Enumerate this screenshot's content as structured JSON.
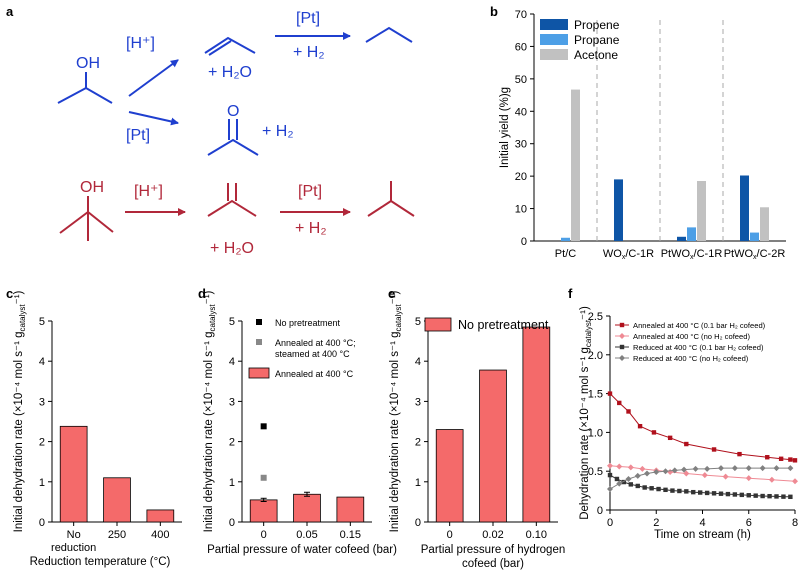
{
  "panel_labels": [
    "a",
    "b",
    "c",
    "d",
    "e",
    "f"
  ],
  "scheme": {
    "top_color": "#1f3fcf",
    "bottom_color": "#b1283a",
    "labels": {
      "oh1": "OH",
      "h_plus1": "[H⁺]",
      "pt_top": "[Pt]",
      "plus_h2_top": "+ H₂",
      "plus_h2o_top": "+ H₂O",
      "pt_mid": "[Pt]",
      "o_label": "O",
      "plus_h2_mid": "+ H₂",
      "oh2": "OH",
      "h_plus2": "[H⁺]",
      "pt_bottom": "[Pt]",
      "plus_h2_bottom": "+ H₂",
      "plus_h2o_bottom": "+ H₂O"
    }
  },
  "chart_data": [
    {
      "id": "b",
      "type": "bar",
      "ylabel": "Initial yield (%)",
      "ylim": [
        0,
        70
      ],
      "yticks": [
        0,
        10,
        20,
        30,
        40,
        50,
        60,
        70
      ],
      "categories": [
        "Pt/C",
        "WOx/C-1R",
        "PtWOx/C-1R",
        "PtWOx/C-2R"
      ],
      "category_labels": [
        {
          "main": "Pt/C",
          "sub": "",
          "rest": ""
        },
        {
          "main": "WO",
          "sub": "x",
          "rest": "/C-1R"
        },
        {
          "main": "PtWO",
          "sub": "x",
          "rest": "/C-1R"
        },
        {
          "main": "PtWO",
          "sub": "x",
          "rest": "/C-2R"
        }
      ],
      "series": [
        {
          "name": "Propene",
          "color": "#0e55a6",
          "values": [
            0,
            19,
            1.3,
            20.2
          ]
        },
        {
          "name": "Propane",
          "color": "#4d9fe6",
          "values": [
            1.0,
            0,
            4.2,
            2.6
          ]
        },
        {
          "name": "Acetone",
          "color": "#c1c1c1",
          "values": [
            46.7,
            0,
            18.5,
            10.4
          ]
        }
      ],
      "legend": "top-left",
      "dividers": true
    },
    {
      "id": "c",
      "type": "bar",
      "ylabel": "Initial dehydration rate (×10⁻⁴ mol s⁻¹ g_catalyst⁻¹)",
      "xlabel": "Reduction temperature (°C)",
      "ylim": [
        0,
        5
      ],
      "yticks": [
        0,
        1,
        2,
        3,
        4,
        5
      ],
      "categories": [
        "No reduction",
        "250",
        "400"
      ],
      "category_lines": [
        [
          "No",
          "reduction"
        ],
        [
          "250"
        ],
        [
          "400"
        ]
      ],
      "color": "#f46a6a",
      "values": [
        2.38,
        1.1,
        0.3
      ]
    },
    {
      "id": "d",
      "type": "bar",
      "ylabel": "Initial dehydration rate (×10⁻⁴ mol s⁻¹ g_catalyst⁻¹)",
      "xlabel": "Partial pressure of water cofeed (bar)",
      "ylim": [
        0,
        5
      ],
      "yticks": [
        0,
        1,
        2,
        3,
        4,
        5
      ],
      "categories": [
        "0",
        "0.05",
        "0.15"
      ],
      "color": "#f46a6a",
      "values": [
        0.55,
        0.69,
        0.62
      ],
      "errors": [
        0.04,
        0.05,
        0
      ],
      "points": [
        {
          "name": "No pretreatment",
          "x": "0",
          "y": 2.38,
          "color": "#000000"
        },
        {
          "name": "Annealed at 400 °C; steamed at 400 °C",
          "x": "0",
          "y": 1.1,
          "color": "#888888"
        }
      ],
      "legend_entries": [
        {
          "text": [
            "No pretreatment"
          ],
          "kind": "square",
          "color": "#000000"
        },
        {
          "text": [
            "Annealed at 400 °C;",
            "steamed at 400 °C"
          ],
          "kind": "square",
          "color": "#888888"
        },
        {
          "text": [
            "Annealed at 400 °C"
          ],
          "kind": "bar",
          "color": "#f46a6a"
        }
      ]
    },
    {
      "id": "e",
      "type": "bar",
      "ylabel": "Initial dehydration rate (×10⁻⁴ mol s⁻¹ g_catalyst⁻¹)",
      "xlabel": "Partial pressure of hydrogen cofeed (bar)",
      "xlabel_lines": [
        "Partial pressure of hydrogen",
        "cofeed (bar)"
      ],
      "ylim": [
        0,
        5
      ],
      "yticks": [
        0,
        1,
        2,
        3,
        4,
        5
      ],
      "categories": [
        "0",
        "0.02",
        "0.10"
      ],
      "color": "#f46a6a",
      "values": [
        2.3,
        3.78,
        4.85
      ],
      "legend_entries": [
        {
          "text": [
            "No pretreatment"
          ],
          "kind": "bar",
          "color": "#f46a6a"
        }
      ]
    },
    {
      "id": "f",
      "type": "line",
      "ylabel": "Dehydration rate (×10⁻⁴ mol s⁻¹ g_catalyst⁻¹)",
      "xlabel": "Time on stream (h)",
      "xlim": [
        0,
        8
      ],
      "ylim": [
        0,
        2.5
      ],
      "xticks": [
        0,
        2,
        4,
        6,
        8
      ],
      "yticks": [
        0,
        0.5,
        1.0,
        1.5,
        2.0,
        2.5
      ],
      "ytick_labels": [
        "0",
        "0.5",
        "1.0",
        "1.5",
        "2.0",
        "2.5"
      ],
      "series": [
        {
          "name": "Annealed at 400 °C (0.1 bar H₂ cofeed)",
          "color": "#b0101c",
          "marker": "square",
          "line": true,
          "x": [
            0,
            0.4,
            0.8,
            1.3,
            1.9,
            2.6,
            3.3,
            4.5,
            5.6,
            6.8,
            7.4,
            7.8,
            8.0
          ],
          "y": [
            1.5,
            1.38,
            1.27,
            1.08,
            1.0,
            0.93,
            0.85,
            0.78,
            0.72,
            0.68,
            0.66,
            0.65,
            0.64
          ]
        },
        {
          "name": "Annealed at 400 °C (no H₂ cofeed)",
          "color": "#ef8a94",
          "marker": "diamond",
          "line": true,
          "x": [
            0,
            0.4,
            0.9,
            1.4,
            2.0,
            2.6,
            3.3,
            4.1,
            5.0,
            6.0,
            7.0,
            8.0
          ],
          "y": [
            0.57,
            0.56,
            0.55,
            0.53,
            0.51,
            0.49,
            0.47,
            0.45,
            0.43,
            0.41,
            0.39,
            0.37
          ]
        },
        {
          "name": "Reduced at 400 °C (0.1 bar H₂ cofeed)",
          "color": "#333333",
          "marker": "square",
          "line": true,
          "x": [
            0,
            0.3,
            0.6,
            0.9,
            1.2,
            1.5,
            1.8,
            2.1,
            2.4,
            2.7,
            3.0,
            3.3,
            3.6,
            3.9,
            4.2,
            4.5,
            4.8,
            5.1,
            5.4,
            5.7,
            6.0,
            6.3,
            6.6,
            6.9,
            7.2,
            7.5,
            7.8
          ],
          "y": [
            0.45,
            0.4,
            0.36,
            0.33,
            0.31,
            0.29,
            0.28,
            0.27,
            0.26,
            0.25,
            0.245,
            0.24,
            0.23,
            0.225,
            0.22,
            0.215,
            0.21,
            0.205,
            0.2,
            0.195,
            0.19,
            0.185,
            0.18,
            0.178,
            0.175,
            0.172,
            0.17
          ]
        },
        {
          "name": "Reduced at 400 °C (no H₂ cofeed)",
          "color": "#808080",
          "marker": "diamond",
          "line": true,
          "x": [
            0,
            0.4,
            0.8,
            1.2,
            1.6,
            2.0,
            2.4,
            2.8,
            3.2,
            3.7,
            4.2,
            4.8,
            5.4,
            6.0,
            6.6,
            7.2,
            7.8
          ],
          "y": [
            0.27,
            0.34,
            0.4,
            0.44,
            0.47,
            0.49,
            0.5,
            0.51,
            0.52,
            0.53,
            0.53,
            0.54,
            0.54,
            0.54,
            0.54,
            0.54,
            0.54
          ]
        }
      ],
      "legend": "top-right"
    }
  ]
}
